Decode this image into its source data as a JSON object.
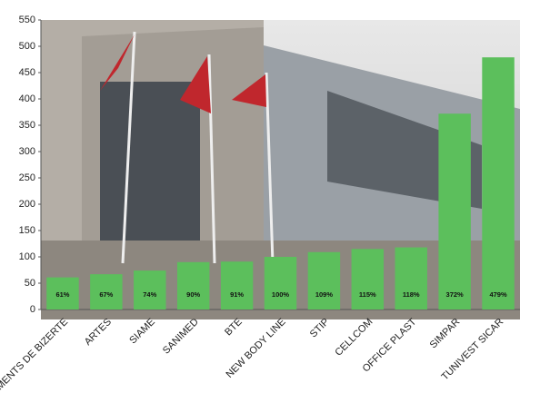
{
  "chart_data": {
    "type": "bar",
    "categories": [
      "CIMENTS DE BIZERTE",
      "ARTES",
      "SIAME",
      "SANIMED",
      "BTE",
      "NEW BODY LINE",
      "STIP",
      "CELLCOM",
      "OFFICE PLAST",
      "SIMPAR",
      "TUNIVEST SICAR"
    ],
    "values": [
      61,
      67,
      74,
      90,
      91,
      100,
      109,
      115,
      118,
      372,
      479
    ],
    "value_labels": [
      "61%",
      "67%",
      "74%",
      "90%",
      "91%",
      "100%",
      "109%",
      "115%",
      "118%",
      "372%",
      "479%"
    ],
    "color": "#5cbf5c",
    "ylim": [
      0,
      550
    ],
    "yticks": [
      0,
      50,
      100,
      150,
      200,
      250,
      300,
      350,
      400,
      450,
      500,
      550
    ]
  }
}
